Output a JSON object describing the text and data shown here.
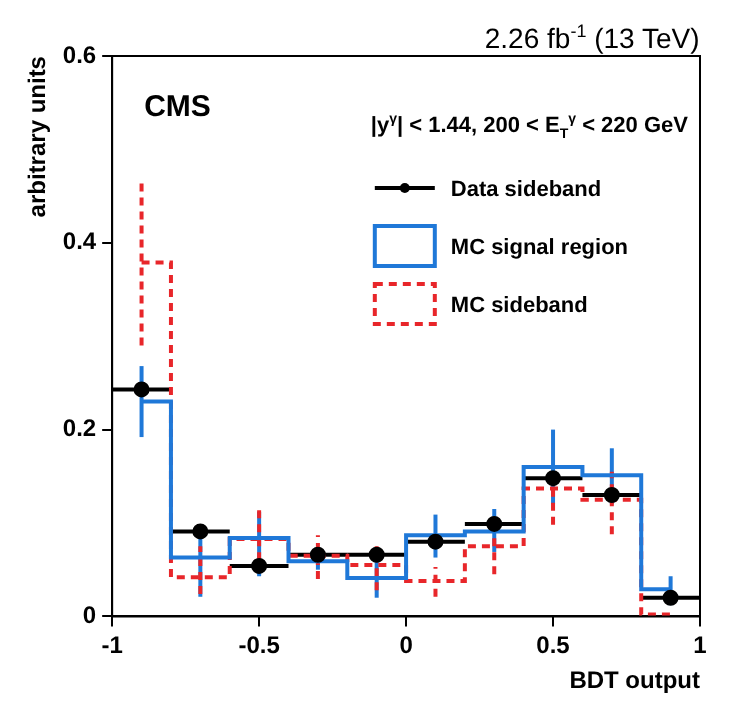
{
  "chart_data": {
    "type": "step",
    "title": "2.26 fb$^{-1}$ (13 TeV)",
    "xlabel": "BDT output",
    "ylabel": "arbitrary units",
    "legend_title": "|y$^{γ}$| < 1.44, 200 < E$_{T}$$^{γ}$ < 220 GeV",
    "annotations": [
      "CMS"
    ],
    "series": [
      {
        "name": "Data sideband",
        "type": "scatter",
        "color": "#000000",
        "marker": "circle",
        "x": [
          -0.9,
          -0.7,
          -0.5,
          -0.3,
          -0.1,
          0.1,
          0.3,
          0.5,
          0.7,
          0.9
        ],
        "values": [
          0.243,
          0.091,
          0.054,
          0.066,
          0.066,
          0.08,
          0.099,
          0.148,
          0.13,
          0.02
        ],
        "xerrors": [
          0.1,
          0.1,
          0.1,
          0.1,
          0.1,
          0.1,
          0.1,
          0.1,
          0.1,
          0.1
        ]
      },
      {
        "name": "MC signal region",
        "color": "#1f78d8",
        "line_style": "solid",
        "x": [
          -0.9,
          -0.7,
          -0.5,
          -0.3,
          -0.1,
          0.1,
          0.3,
          0.5,
          0.7,
          0.9
        ],
        "values": [
          0.23,
          0.063,
          0.084,
          0.059,
          0.041,
          0.087,
          0.091,
          0.16,
          0.151,
          0.029
        ],
        "errors": [
          [
            0.192,
            0.268
          ],
          [
            0.021,
            0.091
          ],
          [
            0.043,
            0.112
          ],
          [
            0.05,
            0.069
          ],
          [
            0.02,
            0.069
          ],
          [
            0.063,
            0.109
          ],
          [
            0.069,
            0.115
          ],
          [
            0.12,
            0.2
          ],
          [
            0.12,
            0.18
          ],
          [
            0.012,
            0.043
          ]
        ]
      },
      {
        "name": "MC sideband",
        "color": "#e8262a",
        "line_style": "dashed",
        "x": [
          -0.9,
          -0.7,
          -0.5,
          -0.3,
          -0.1,
          0.1,
          0.3,
          0.5,
          0.7,
          0.9
        ],
        "values": [
          0.379,
          0.042,
          0.083,
          0.065,
          0.055,
          0.038,
          0.075,
          0.137,
          0.125,
          0.002
        ],
        "errors": [
          [
            0.29,
            0.469
          ],
          [
            0.024,
            0.075
          ],
          [
            0.06,
            0.117
          ],
          [
            0.04,
            0.087
          ],
          [
            0.028,
            0.075
          ],
          [
            0.021,
            0.053
          ],
          [
            0.045,
            0.085
          ],
          [
            0.098,
            0.139
          ],
          [
            0.088,
            0.155
          ],
          null
        ]
      }
    ],
    "xlim": [
      -1,
      1
    ],
    "ylim": [
      0,
      0.6
    ],
    "xticks": [
      -1,
      -0.5,
      0,
      0.5,
      1
    ],
    "yticks": [
      0,
      0.2,
      0.4,
      0.6
    ],
    "legend": "top right"
  }
}
